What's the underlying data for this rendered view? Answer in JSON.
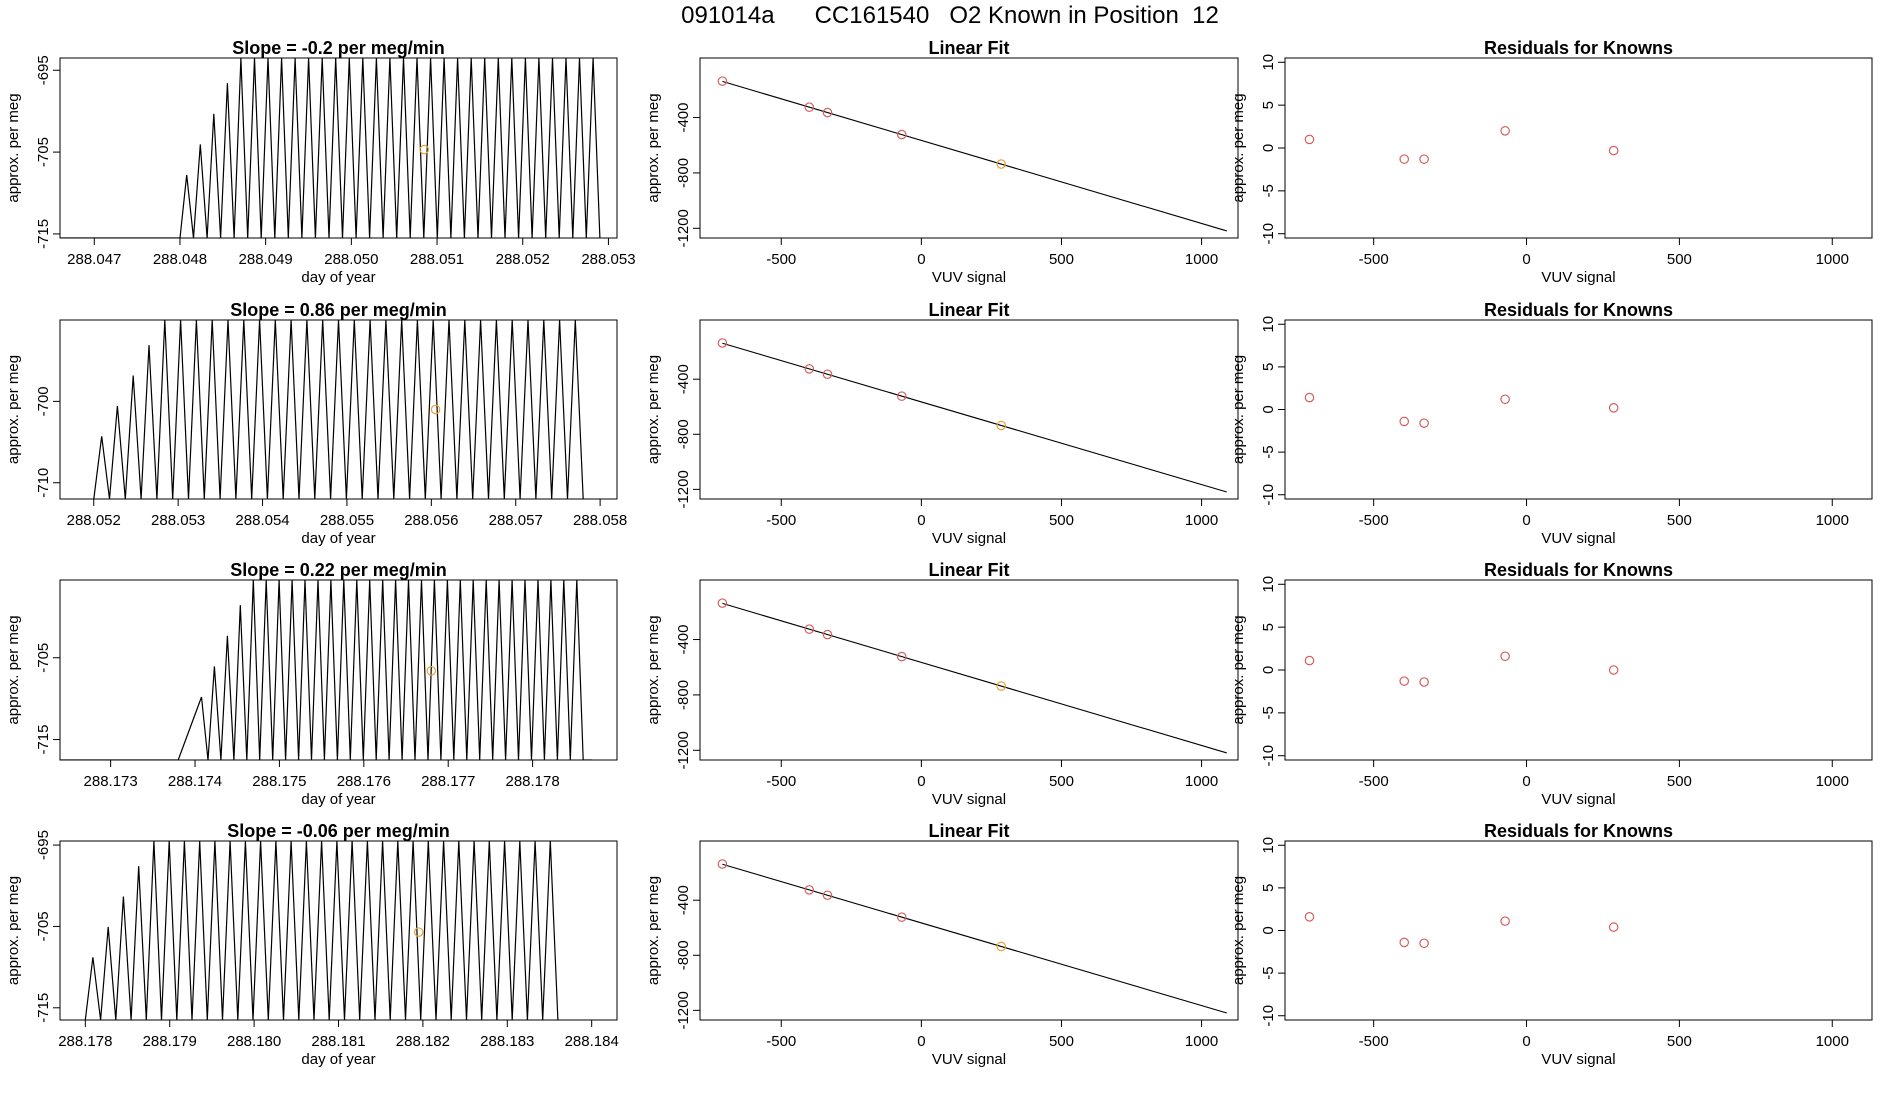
{
  "title": "091014a      CC161540   O2 Known in Position  12",
  "colors": {
    "series": "#000000",
    "known": "#d45f5f",
    "unknown": "#e6a23a"
  },
  "chart_data": [
    {
      "type": "line",
      "title": "Slope =  -0.2  per meg/min",
      "xlabel": "day of year",
      "ylabel": "approx. per meg",
      "xlim": [
        288.0466,
        288.0531
      ],
      "ylim": [
        -715.5,
        -693.5
      ],
      "xticks": [
        "288.047",
        "288.048",
        "288.049",
        "288.050",
        "288.051",
        "288.052",
        "288.053"
      ],
      "yticks": [
        "-695",
        "-705",
        "-715"
      ],
      "trace": {
        "x_start": 288.0466,
        "x_end": 288.0529,
        "onset": 288.048,
        "osc_start": 288.048,
        "osc_end": 288.0529,
        "peaks": 31,
        "y_low": -715.5,
        "y_high": -693.5
      },
      "points": [
        {
          "x": 288.05085,
          "y": -704.7,
          "color": "unknown"
        }
      ]
    },
    {
      "type": "scatter",
      "title": "Linear Fit",
      "xlabel": "VUV signal",
      "ylabel": "approx. per meg",
      "xlim": [
        -790,
        1130
      ],
      "ylim": [
        -1270,
        30
      ],
      "xticks": [
        "-500",
        "0",
        "500",
        "1000"
      ],
      "yticks": [
        "-400",
        "-800",
        "-1200"
      ],
      "fit": {
        "x0": -710,
        "x1": 1090,
        "slope": -0.6,
        "intercept": -565
      },
      "points": [
        {
          "x": -710,
          "y": -137,
          "color": "known"
        },
        {
          "x": -400,
          "y": -325,
          "color": "known"
        },
        {
          "x": -335,
          "y": -364,
          "color": "known"
        },
        {
          "x": -70,
          "y": -523,
          "color": "known"
        },
        {
          "x": 285,
          "y": -736,
          "color": "unknown"
        }
      ]
    },
    {
      "type": "scatter",
      "title": "Residuals for Knowns",
      "xlabel": "VUV signal",
      "ylabel": "approx. per meg",
      "xlim": [
        -790,
        1130
      ],
      "ylim": [
        -10.5,
        10.5
      ],
      "xticks": [
        "-500",
        "0",
        "500",
        "1000"
      ],
      "yticks": [
        "10",
        "5",
        "0",
        "-5",
        "-10"
      ],
      "points": [
        {
          "x": -710,
          "y": 1.0,
          "color": "known"
        },
        {
          "x": -400,
          "y": -1.3,
          "color": "known"
        },
        {
          "x": -335,
          "y": -1.3,
          "color": "known"
        },
        {
          "x": -70,
          "y": 2.0,
          "color": "known"
        },
        {
          "x": 285,
          "y": -0.3,
          "color": "known"
        }
      ]
    },
    {
      "type": "line",
      "title": "Slope =  0.86  per meg/min",
      "xlabel": "day of year",
      "ylabel": "approx. per meg",
      "xlim": [
        288.0516,
        288.0582
      ],
      "ylim": [
        -712,
        -690
      ],
      "xticks": [
        "288.052",
        "288.053",
        "288.054",
        "288.055",
        "288.056",
        "288.057",
        "288.058"
      ],
      "yticks": [
        "-700",
        "-710"
      ],
      "trace": {
        "x_start": 288.052,
        "x_end": 288.0578,
        "onset": 288.052,
        "osc_start": 288.052,
        "osc_end": 288.0578,
        "peaks": 31,
        "y_low": -712,
        "y_high": -690
      },
      "points": [
        {
          "x": 288.05605,
          "y": -701.0,
          "color": "unknown"
        }
      ]
    },
    {
      "type": "scatter",
      "title": "Linear Fit",
      "xlabel": "VUV signal",
      "ylabel": "approx. per meg",
      "xlim": [
        -790,
        1130
      ],
      "ylim": [
        -1270,
        30
      ],
      "xticks": [
        "-500",
        "0",
        "500",
        "1000"
      ],
      "yticks": [
        "-400",
        "-800",
        "-1200"
      ],
      "fit": {
        "x0": -710,
        "x1": 1090,
        "slope": -0.6,
        "intercept": -565
      },
      "points": [
        {
          "x": -710,
          "y": -137,
          "color": "known"
        },
        {
          "x": -400,
          "y": -325,
          "color": "known"
        },
        {
          "x": -335,
          "y": -364,
          "color": "known"
        },
        {
          "x": -70,
          "y": -523,
          "color": "known"
        },
        {
          "x": 285,
          "y": -736,
          "color": "unknown"
        }
      ]
    },
    {
      "type": "scatter",
      "title": "Residuals for Knowns",
      "xlabel": "VUV signal",
      "ylabel": "approx. per meg",
      "xlim": [
        -790,
        1130
      ],
      "ylim": [
        -10.5,
        10.5
      ],
      "xticks": [
        "-500",
        "0",
        "500",
        "1000"
      ],
      "yticks": [
        "10",
        "5",
        "0",
        "-5",
        "-10"
      ],
      "points": [
        {
          "x": -710,
          "y": 1.4,
          "color": "known"
        },
        {
          "x": -400,
          "y": -1.4,
          "color": "known"
        },
        {
          "x": -335,
          "y": -1.6,
          "color": "known"
        },
        {
          "x": -70,
          "y": 1.2,
          "color": "known"
        },
        {
          "x": 285,
          "y": 0.2,
          "color": "known"
        }
      ]
    },
    {
      "type": "line",
      "title": "Slope =  0.22  per meg/min",
      "xlabel": "day of year",
      "ylabel": "approx. per meg",
      "xlim": [
        288.1724,
        288.179
      ],
      "ylim": [
        -717.5,
        -695.5
      ],
      "xticks": [
        "288.173",
        "288.174",
        "288.175",
        "288.176",
        "288.177",
        "288.178"
      ],
      "yticks": [
        "-705",
        "-715"
      ],
      "trace": {
        "x_start": 288.1724,
        "x_end": 288.1787,
        "onset": 288.1738,
        "osc_start": 288.174,
        "osc_end": 288.1786,
        "peaks": 30,
        "y_low": -717.5,
        "y_high": -695.5
      },
      "points": [
        {
          "x": 288.1768,
          "y": -706.6,
          "color": "unknown"
        }
      ]
    },
    {
      "type": "scatter",
      "title": "Linear Fit",
      "xlabel": "VUV signal",
      "ylabel": "approx. per meg",
      "xlim": [
        -790,
        1130
      ],
      "ylim": [
        -1270,
        30
      ],
      "xticks": [
        "-500",
        "0",
        "500",
        "1000"
      ],
      "yticks": [
        "-400",
        "-800",
        "-1200"
      ],
      "fit": {
        "x0": -710,
        "x1": 1090,
        "slope": -0.6,
        "intercept": -565
      },
      "points": [
        {
          "x": -710,
          "y": -137,
          "color": "known"
        },
        {
          "x": -400,
          "y": -325,
          "color": "known"
        },
        {
          "x": -335,
          "y": -364,
          "color": "known"
        },
        {
          "x": -70,
          "y": -523,
          "color": "known"
        },
        {
          "x": 285,
          "y": -736,
          "color": "unknown"
        }
      ]
    },
    {
      "type": "scatter",
      "title": "Residuals for Knowns",
      "xlabel": "VUV signal",
      "ylabel": "approx. per meg",
      "xlim": [
        -790,
        1130
      ],
      "ylim": [
        -10.5,
        10.5
      ],
      "xticks": [
        "-500",
        "0",
        "500",
        "1000"
      ],
      "yticks": [
        "10",
        "5",
        "0",
        "-5",
        "-10"
      ],
      "points": [
        {
          "x": -710,
          "y": 1.1,
          "color": "known"
        },
        {
          "x": -400,
          "y": -1.3,
          "color": "known"
        },
        {
          "x": -335,
          "y": -1.4,
          "color": "known"
        },
        {
          "x": -70,
          "y": 1.6,
          "color": "known"
        },
        {
          "x": 285,
          "y": 0.0,
          "color": "known"
        }
      ]
    },
    {
      "type": "line",
      "title": "Slope =  -0.06  per meg/min",
      "xlabel": "day of year",
      "ylabel": "approx. per meg",
      "xlim": [
        288.1777,
        288.1843
      ],
      "ylim": [
        -716.5,
        -694.5
      ],
      "xticks": [
        "288.178",
        "288.179",
        "288.180",
        "288.181",
        "288.182",
        "288.183",
        "288.184"
      ],
      "yticks": [
        "-695",
        "-705",
        "-715"
      ],
      "trace": {
        "x_start": 288.178,
        "x_end": 288.1836,
        "onset": 288.178,
        "osc_start": 288.178,
        "osc_end": 288.1836,
        "peaks": 31,
        "y_low": -716.5,
        "y_high": -694.5
      },
      "points": [
        {
          "x": 288.18195,
          "y": -705.7,
          "color": "unknown"
        }
      ]
    },
    {
      "type": "scatter",
      "title": "Linear Fit",
      "xlabel": "VUV signal",
      "ylabel": "approx. per meg",
      "xlim": [
        -790,
        1130
      ],
      "ylim": [
        -1270,
        30
      ],
      "xticks": [
        "-500",
        "0",
        "500",
        "1000"
      ],
      "yticks": [
        "-400",
        "-800",
        "-1200"
      ],
      "fit": {
        "x0": -710,
        "x1": 1090,
        "slope": -0.6,
        "intercept": -565
      },
      "points": [
        {
          "x": -710,
          "y": -137,
          "color": "known"
        },
        {
          "x": -400,
          "y": -325,
          "color": "known"
        },
        {
          "x": -335,
          "y": -364,
          "color": "known"
        },
        {
          "x": -70,
          "y": -523,
          "color": "known"
        },
        {
          "x": 285,
          "y": -736,
          "color": "unknown"
        }
      ]
    },
    {
      "type": "scatter",
      "title": "Residuals for Knowns",
      "xlabel": "VUV signal",
      "ylabel": "approx. per meg",
      "xlim": [
        -790,
        1130
      ],
      "ylim": [
        -10.5,
        10.5
      ],
      "xticks": [
        "-500",
        "0",
        "500",
        "1000"
      ],
      "yticks": [
        "10",
        "5",
        "0",
        "-5",
        "-10"
      ],
      "points": [
        {
          "x": -710,
          "y": 1.6,
          "color": "known"
        },
        {
          "x": -400,
          "y": -1.4,
          "color": "known"
        },
        {
          "x": -335,
          "y": -1.5,
          "color": "known"
        },
        {
          "x": -70,
          "y": 1.1,
          "color": "known"
        },
        {
          "x": 285,
          "y": 0.4,
          "color": "known"
        }
      ]
    }
  ]
}
